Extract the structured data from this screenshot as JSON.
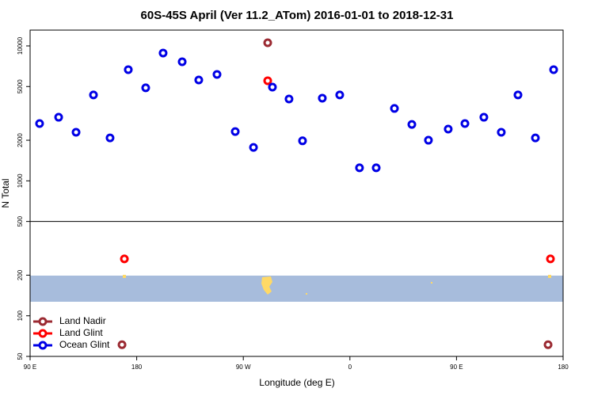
{
  "chart_data": {
    "type": "scatter",
    "title": "60S-45S April (Ver 11.2_ATom)   2016-01-01 to 2018-12-31",
    "x_label": "Longitude (deg E)",
    "y_label": "N Total",
    "log_y": true,
    "xlim": [
      90,
      540
    ],
    "ylim": [
      50,
      13100
    ],
    "xticks": [
      {
        "value": 90,
        "label": "90 E"
      },
      {
        "value": 180,
        "label": "180"
      },
      {
        "value": 270,
        "label": "90 W"
      },
      {
        "value": 360,
        "label": "0"
      },
      {
        "value": 450,
        "label": "90 E"
      },
      {
        "value": 540,
        "label": "180"
      }
    ],
    "yticks": [
      50,
      100,
      200,
      500,
      1000,
      2000,
      5000,
      10000
    ],
    "reference_line": 500,
    "legend": "bottom-left",
    "series": [
      {
        "name": "Land Nadir",
        "color": "#9b2a32",
        "x": [
          290.6,
          167.6,
          527.3
        ],
        "values": [
          10550,
          61,
          61
        ]
      },
      {
        "name": "Land Glint",
        "color": "#ff0000",
        "x": [
          290.6,
          169.6,
          529.3
        ],
        "values": [
          5520,
          264,
          264
        ]
      },
      {
        "name": "Ocean Glint",
        "color": "#0000e6",
        "x": [
          98.0,
          114.1,
          128.8,
          143.5,
          157.5,
          172.9,
          187.6,
          202.3,
          218.4,
          232.4,
          247.8,
          263.2,
          278.6,
          294.6,
          308.6,
          320.0,
          336.7,
          351.4,
          368.1,
          382.2,
          397.6,
          412.3,
          426.3,
          443.0,
          457.1,
          473.1,
          487.8,
          501.9,
          516.6,
          532.0
        ],
        "values": [
          2660,
          2960,
          2290,
          4330,
          2080,
          6670,
          4890,
          8850,
          7630,
          5590,
          6150,
          2320,
          1770,
          4950,
          4040,
          1980,
          4100,
          4330,
          1250,
          1250,
          3440,
          2620,
          2000,
          2420,
          2660,
          2960,
          2290,
          4330,
          2080,
          6670
        ]
      }
    ]
  }
}
